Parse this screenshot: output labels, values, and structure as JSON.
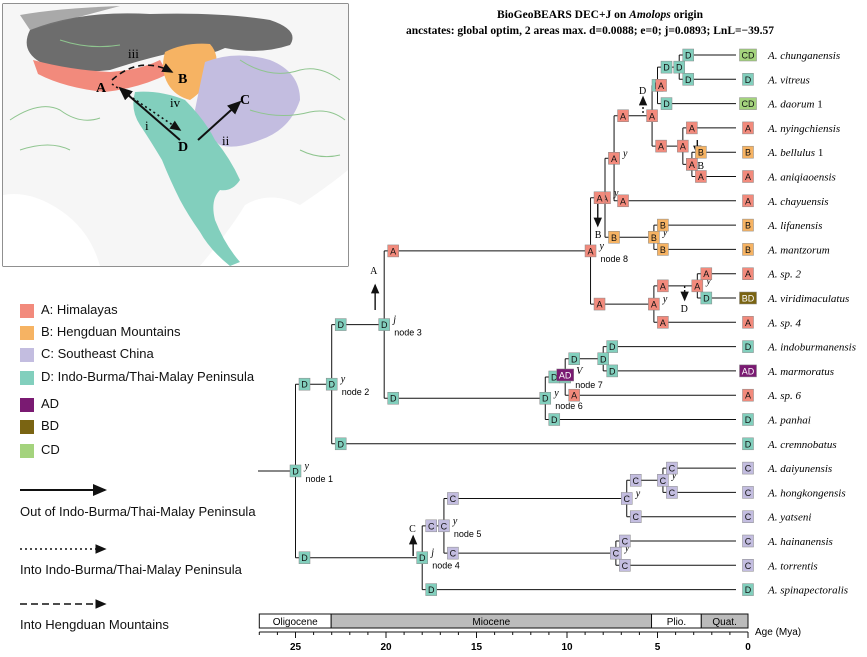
{
  "title": {
    "line1_prefix": "BioGeoBEARS DEC+J on ",
    "line1_italic": "Amolops",
    "line1_suffix": " origin",
    "line2": "ancstates: global optim, 2 areas max. d=0.0088; e=0; j=0.0893; LnL=−39.57"
  },
  "colors": {
    "A": "#f28a7c",
    "B": "#f6b363",
    "C": "#c3bde0",
    "D": "#82cfbd",
    "AD": "#7a1a72",
    "BD": "#7a6412",
    "CD": "#a4d37d",
    "map_land": "#f4f4f4",
    "map_water": "#ffffff",
    "map_rivers": "#8fc58f"
  },
  "legend": [
    {
      "key": "A",
      "label": "A: Himalayas"
    },
    {
      "key": "B",
      "label": "B: Hengduan Mountains"
    },
    {
      "key": "C",
      "label": "C: Southeast China"
    },
    {
      "key": "D",
      "label": "D: Indo-Burma/Thai-Malay Peninsula"
    },
    {
      "key": "AD",
      "label": "AD"
    },
    {
      "key": "BD",
      "label": "BD"
    },
    {
      "key": "CD",
      "label": "CD"
    }
  ],
  "arrow_legend": [
    {
      "style": "solid",
      "label": "Out of Indo-Burma/Thai-Malay Peninsula"
    },
    {
      "style": "dotted",
      "label": "Into Indo-Burma/Thai-Malay Peninsula"
    },
    {
      "style": "dashed",
      "label": "Into Hengduan Mountains"
    }
  ],
  "map_labels": {
    "A": "A",
    "B": "B",
    "C": "C",
    "D": "D",
    "i": "i",
    "ii": "ii",
    "iii": "iii",
    "iv": "iv"
  },
  "taxa": [
    {
      "name": "A. chunganensis",
      "area": "CD"
    },
    {
      "name": "A. vitreus",
      "area": "D"
    },
    {
      "name": "A. daorum",
      "suffix": " 1",
      "area": "CD"
    },
    {
      "name": "A. nyingchiensis",
      "area": "A"
    },
    {
      "name": "A. bellulus",
      "suffix": " 1",
      "area": "B"
    },
    {
      "name": "A. aniqiaoensis",
      "area": "A"
    },
    {
      "name": "A. chayuensis",
      "area": "A"
    },
    {
      "name": "A. lifanensis",
      "area": "B"
    },
    {
      "name": "A. mantzorum",
      "area": "B"
    },
    {
      "name": "A. sp. 2",
      "area": "A"
    },
    {
      "name": "A. viridimaculatus",
      "area": "BD"
    },
    {
      "name": "A. sp. 4",
      "area": "A"
    },
    {
      "name": "A. indoburmanensis",
      "area": "D"
    },
    {
      "name": "A. marmoratus",
      "area": "AD"
    },
    {
      "name": "A. sp. 6",
      "area": "A"
    },
    {
      "name": "A. panhai",
      "area": "D"
    },
    {
      "name": "A. cremnobatus",
      "area": "D"
    },
    {
      "name": "A. daiyunensis",
      "area": "C"
    },
    {
      "name": "A. hongkongensis",
      "area": "C"
    },
    {
      "name": "A. yatseni",
      "area": "C"
    },
    {
      "name": "A. hainanensis",
      "area": "C"
    },
    {
      "name": "A. torrentis",
      "area": "C"
    },
    {
      "name": "A. spinapectoralis",
      "area": "D"
    }
  ],
  "node_labels": [
    "node 1",
    "node 2",
    "node 3",
    "node 4",
    "node 5",
    "node 6",
    "node 7",
    "node 8"
  ],
  "event_letters": {
    "y": "y",
    "j": "j",
    "v": "V"
  },
  "dispersal_marks": [
    "A",
    "B",
    "D",
    "C"
  ],
  "timescale": {
    "epochs": [
      {
        "name": "Oligocene",
        "from": 27,
        "to": 23.03
      },
      {
        "name": "Miocene",
        "from": 23.03,
        "to": 5.33
      },
      {
        "name": "Plio.",
        "from": 5.33,
        "to": 2.58
      },
      {
        "name": "Quat.",
        "from": 2.58,
        "to": 0
      }
    ],
    "ticks": [
      25,
      20,
      15,
      10,
      5,
      0
    ],
    "axis_label": "Age (Mya)"
  }
}
